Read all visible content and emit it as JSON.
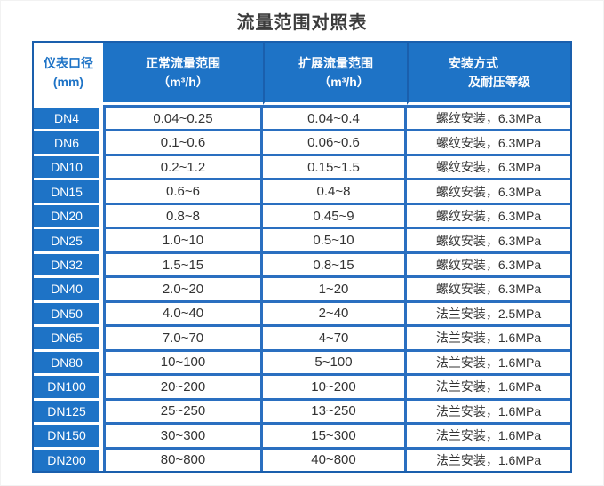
{
  "page": {
    "title": "流量范围对照表"
  },
  "colors": {
    "header_blue": "#1e73c6",
    "grid_blue": "#2a6fc0",
    "border_blue": "#1a5fad",
    "text_dark": "#333333",
    "header_text": "#ffffff",
    "first_header_text": "#1e73c6"
  },
  "table": {
    "header": {
      "col1_line1": "仪表口径",
      "col1_line2": "(mm)",
      "col2_line1": "正常流量范围",
      "col2_line2": "（m³/h）",
      "col3_line1": "扩展流量范围",
      "col3_line2": "（m³/h）",
      "col4_line1": "安装方式",
      "col4_line2": "及耐压等级"
    }
  },
  "chart_data": {
    "type": "table",
    "title": "流量范围对照表",
    "columns": [
      "仪表口径(mm)",
      "正常流量范围（m³/h）",
      "扩展流量范围（m³/h）",
      "安装方式及耐压等级"
    ],
    "rows": [
      [
        "DN4",
        "0.04~0.25",
        "0.04~0.4",
        "螺纹安装，6.3MPa"
      ],
      [
        "DN6",
        "0.1~0.6",
        "0.06~0.6",
        "螺纹安装，6.3MPa"
      ],
      [
        "DN10",
        "0.2~1.2",
        "0.15~1.5",
        "螺纹安装，6.3MPa"
      ],
      [
        "DN15",
        "0.6~6",
        "0.4~8",
        "螺纹安装，6.3MPa"
      ],
      [
        "DN20",
        "0.8~8",
        "0.45~9",
        "螺纹安装，6.3MPa"
      ],
      [
        "DN25",
        "1.0~10",
        "0.5~10",
        "螺纹安装，6.3MPa"
      ],
      [
        "DN32",
        "1.5~15",
        "0.8~15",
        "螺纹安装，6.3MPa"
      ],
      [
        "DN40",
        "2.0~20",
        "1~20",
        "螺纹安装，6.3MPa"
      ],
      [
        "DN50",
        "4.0~40",
        "2~40",
        "法兰安装，2.5MPa"
      ],
      [
        "DN65",
        "7.0~70",
        "4~70",
        "法兰安装，1.6MPa"
      ],
      [
        "DN80",
        "10~100",
        "5~100",
        "法兰安装，1.6MPa"
      ],
      [
        "DN100",
        "20~200",
        "10~200",
        "法兰安装，1.6MPa"
      ],
      [
        "DN125",
        "25~250",
        "13~250",
        "法兰安装，1.6MPa"
      ],
      [
        "DN150",
        "30~300",
        "15~300",
        "法兰安装，1.6MPa"
      ],
      [
        "DN200",
        "80~800",
        "40~800",
        "法兰安装，1.6MPa"
      ]
    ]
  }
}
